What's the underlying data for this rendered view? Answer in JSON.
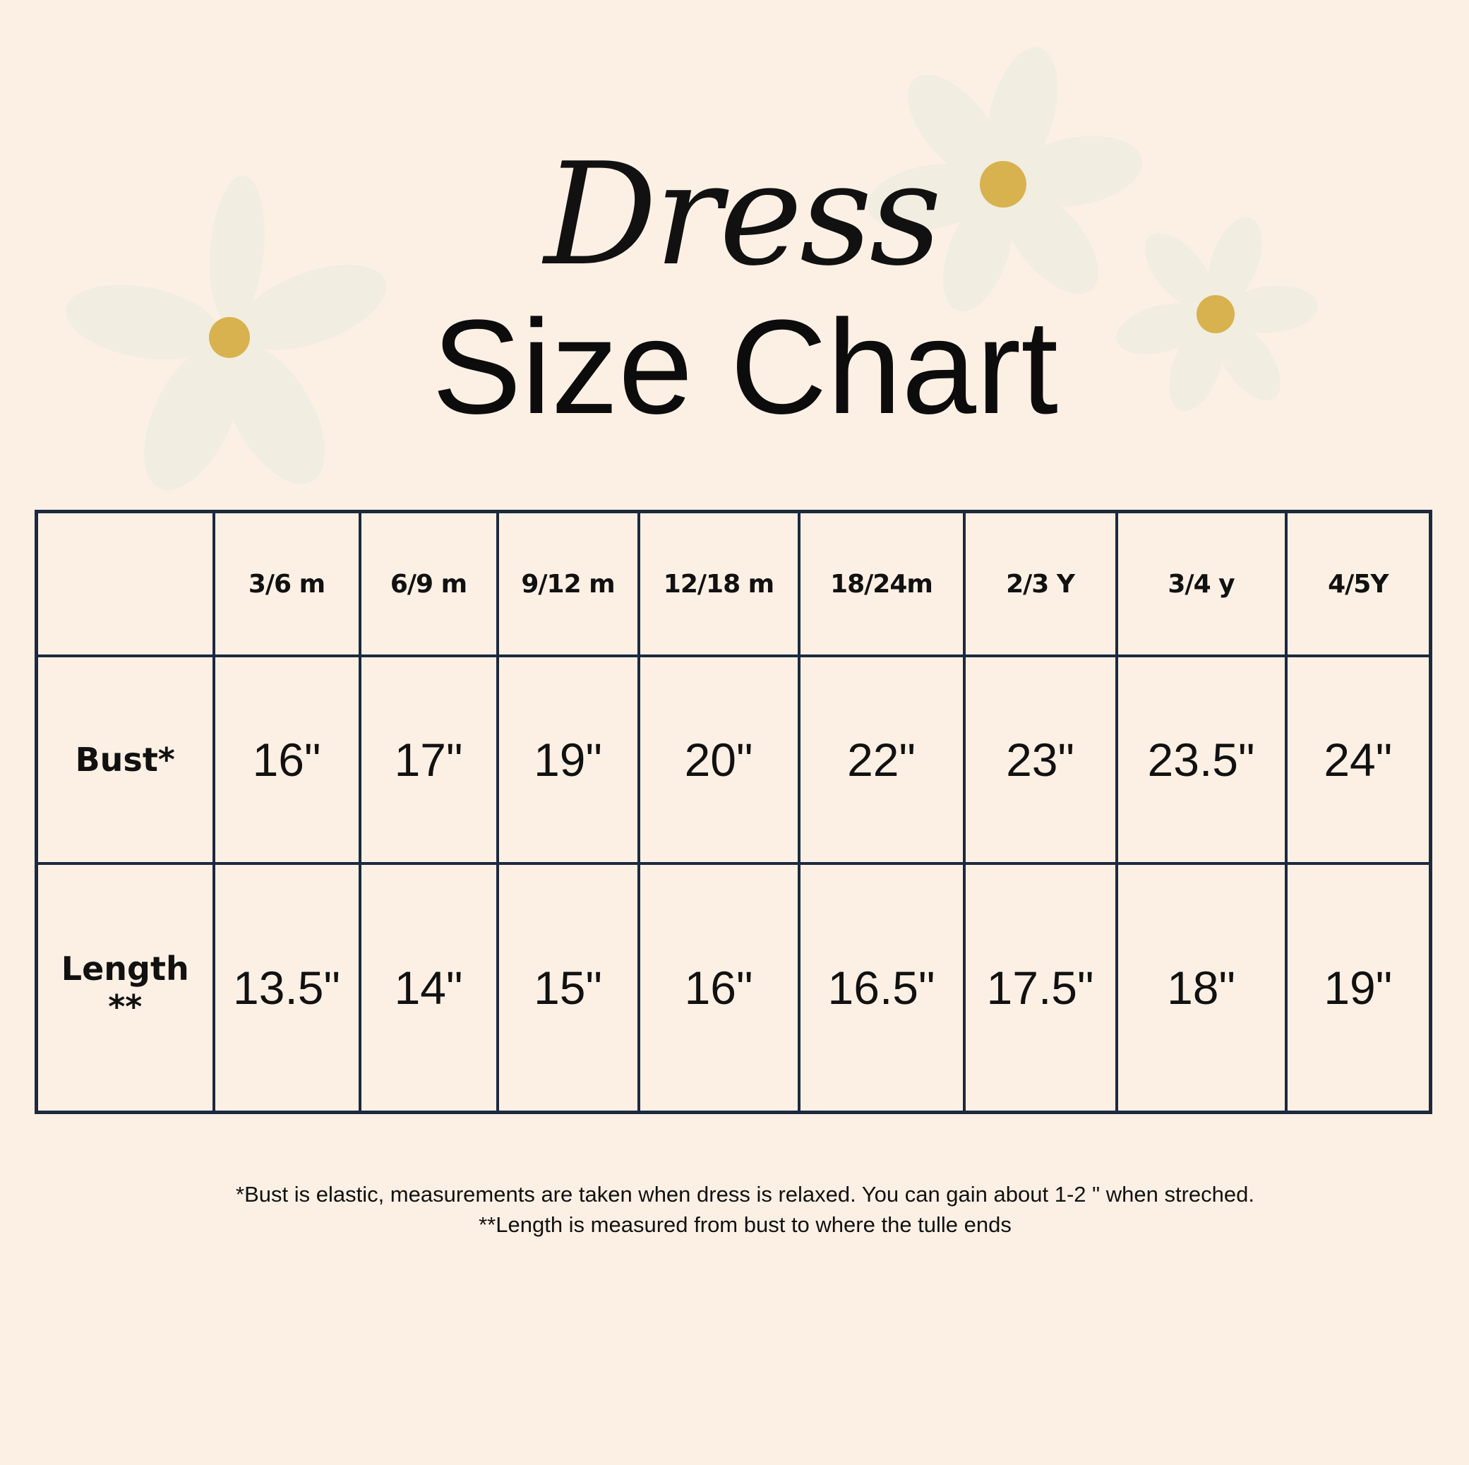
{
  "title_script": "Dress",
  "title": "Size Chart",
  "colors": {
    "background": "#fcf0e4",
    "petal": "#f1ede0",
    "flower_center": "#d8b24e",
    "grid": "#1c2a40"
  },
  "table": {
    "headers": [
      "",
      "3/6 m",
      "6/9 m",
      "9/12 m",
      "12/18 m",
      "18/24m",
      "2/3 Y",
      "3/4 y",
      "4/5Y"
    ],
    "rows": [
      {
        "label": "Bust*",
        "label2": "",
        "values": [
          "16\"",
          "17\"",
          "19\"",
          "20\"",
          "22\"",
          "23\"",
          "23.5\"",
          "24\""
        ]
      },
      {
        "label": "Length",
        "label2": "**",
        "values": [
          "13.5\"",
          "14\"",
          "15\"",
          "16\"",
          "16.5\"",
          "17.5\"",
          "18\"",
          "19\""
        ]
      }
    ]
  },
  "notes": [
    "*Bust is elastic, measurements are taken when dress is relaxed. You can gain about 1-2 \" when streched.",
    "**Length is measured from bust to where the tulle ends"
  ]
}
